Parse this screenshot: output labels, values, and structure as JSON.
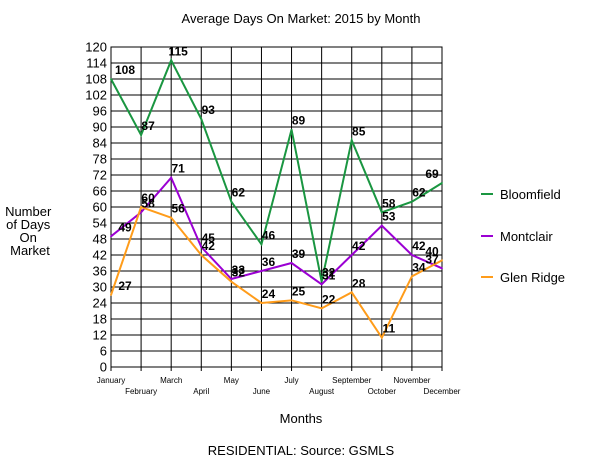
{
  "chart_data": {
    "type": "line",
    "title": "Average Days On Market: 2015 by Month",
    "xlabel": "Months",
    "ylabel": [
      "Number",
      "of Days",
      "On",
      "Market"
    ],
    "footer": "RESIDENTIAL: Source: GSMLS",
    "categories": [
      "January",
      "February",
      "March",
      "April",
      "May",
      "June",
      "July",
      "August",
      "September",
      "October",
      "November",
      "December"
    ],
    "ylim": [
      0,
      120
    ],
    "yticks": [
      0,
      6,
      12,
      18,
      24,
      30,
      36,
      42,
      48,
      54,
      60,
      66,
      72,
      78,
      84,
      90,
      96,
      102,
      108,
      114,
      120
    ],
    "grid": true,
    "legend_position": "right",
    "series": [
      {
        "name": "Bloomfield",
        "color": "#1a9641",
        "values": [
          108,
          87,
          115,
          93,
          62,
          46,
          89,
          32,
          85,
          58,
          62,
          69
        ]
      },
      {
        "name": "Montclair",
        "color": "#9b00d3",
        "values": [
          49,
          58,
          71,
          45,
          33,
          36,
          39,
          31,
          42,
          53,
          42,
          37
        ]
      },
      {
        "name": "Glen Ridge",
        "color": "#ff9c1a",
        "values": [
          27,
          60,
          56,
          42,
          32,
          24,
          25,
          22,
          28,
          11,
          34,
          40
        ]
      }
    ]
  }
}
